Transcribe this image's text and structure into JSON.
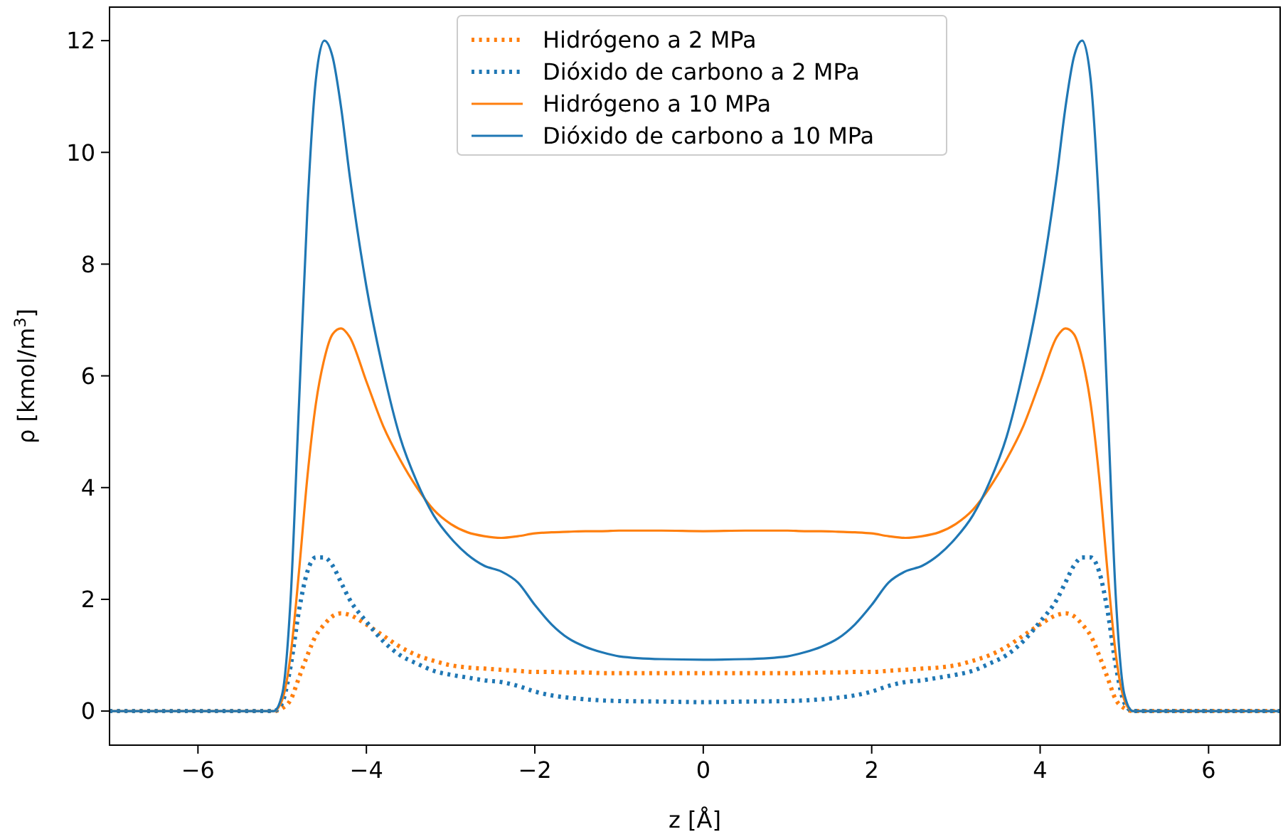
{
  "chart_data": {
    "type": "line",
    "xlabel": "z  [Å]",
    "ylabel": "ρ  [kmol/m$^{3}$]",
    "x": [
      -7.05,
      -5.1,
      -5.0,
      -4.9,
      -4.8,
      -4.7,
      -4.6,
      -4.5,
      -4.4,
      -4.3,
      -4.2,
      -4.0,
      -3.8,
      -3.6,
      -3.4,
      -3.2,
      -3.0,
      -2.8,
      -2.6,
      -2.4,
      -2.2,
      -2.0,
      -1.8,
      -1.6,
      -1.4,
      -1.2,
      -1.0,
      -0.5,
      0,
      0.5,
      1.0,
      1.2,
      1.4,
      1.6,
      1.8,
      2.0,
      2.2,
      2.4,
      2.6,
      2.8,
      3.0,
      3.2,
      3.4,
      3.6,
      3.8,
      4.0,
      4.2,
      4.3,
      4.4,
      4.5,
      4.6,
      4.7,
      4.8,
      4.9,
      5.0,
      5.1,
      6.85
    ],
    "series": [
      {
        "name": "Hidrógeno a 2 MPa",
        "color": "#ff7f0e",
        "line_style": "dotted",
        "values": [
          0,
          0,
          0.05,
          0.2,
          0.6,
          1.0,
          1.35,
          1.55,
          1.7,
          1.75,
          1.72,
          1.55,
          1.35,
          1.15,
          1.0,
          0.9,
          0.82,
          0.78,
          0.76,
          0.74,
          0.72,
          0.7,
          0.7,
          0.69,
          0.69,
          0.68,
          0.68,
          0.68,
          0.68,
          0.68,
          0.68,
          0.68,
          0.69,
          0.69,
          0.7,
          0.7,
          0.72,
          0.74,
          0.76,
          0.78,
          0.82,
          0.9,
          1.0,
          1.15,
          1.35,
          1.55,
          1.72,
          1.75,
          1.7,
          1.55,
          1.35,
          1.0,
          0.6,
          0.2,
          0.05,
          0,
          0
        ]
      },
      {
        "name": "Dióxido de carbono a 2 MPa",
        "color": "#1f77b4",
        "line_style": "dotted",
        "values": [
          0,
          0,
          0.15,
          0.8,
          1.8,
          2.5,
          2.75,
          2.75,
          2.6,
          2.3,
          2.0,
          1.6,
          1.25,
          1.0,
          0.85,
          0.72,
          0.65,
          0.6,
          0.55,
          0.52,
          0.45,
          0.35,
          0.28,
          0.24,
          0.21,
          0.19,
          0.18,
          0.17,
          0.16,
          0.17,
          0.18,
          0.19,
          0.21,
          0.24,
          0.28,
          0.35,
          0.45,
          0.52,
          0.55,
          0.6,
          0.65,
          0.72,
          0.85,
          1.0,
          1.25,
          1.6,
          2.0,
          2.3,
          2.6,
          2.75,
          2.75,
          2.5,
          1.8,
          0.8,
          0.15,
          0,
          0
        ]
      },
      {
        "name": "Hidrógeno a 10 MPa",
        "color": "#ff7f0e",
        "line_style": "solid",
        "values": [
          0,
          0,
          0.2,
          1,
          2.5,
          4.2,
          5.5,
          6.3,
          6.75,
          6.85,
          6.7,
          5.9,
          5.1,
          4.5,
          4.0,
          3.6,
          3.35,
          3.2,
          3.13,
          3.1,
          3.13,
          3.18,
          3.2,
          3.21,
          3.22,
          3.22,
          3.23,
          3.23,
          3.22,
          3.23,
          3.23,
          3.22,
          3.22,
          3.21,
          3.2,
          3.18,
          3.13,
          3.1,
          3.13,
          3.2,
          3.35,
          3.6,
          4.0,
          4.5,
          5.1,
          5.9,
          6.7,
          6.85,
          6.75,
          6.3,
          5.5,
          4.2,
          2.5,
          1,
          0.2,
          0,
          0
        ]
      },
      {
        "name": "Dióxido de carbono a 10 MPa",
        "color": "#1f77b4",
        "line_style": "solid",
        "values": [
          0,
          0,
          0.3,
          2,
          5.5,
          9,
          11.3,
          12.0,
          11.7,
          10.8,
          9.6,
          7.6,
          6.1,
          4.9,
          4.1,
          3.5,
          3.1,
          2.8,
          2.6,
          2.5,
          2.3,
          1.9,
          1.55,
          1.3,
          1.15,
          1.05,
          0.98,
          0.93,
          0.92,
          0.93,
          0.98,
          1.05,
          1.15,
          1.3,
          1.55,
          1.9,
          2.3,
          2.5,
          2.6,
          2.8,
          3.1,
          3.5,
          4.1,
          4.9,
          6.1,
          7.6,
          9.6,
          10.8,
          11.7,
          12.0,
          11.3,
          9,
          5.5,
          2,
          0.3,
          0,
          0
        ]
      }
    ],
    "xlim": [
      -7.05,
      6.85
    ],
    "ylim": [
      -0.61,
      12.6
    ],
    "xticks": [
      {
        "value": -6,
        "label": "−6"
      },
      {
        "value": -4,
        "label": "−4"
      },
      {
        "value": -2,
        "label": "−2"
      },
      0,
      2,
      4,
      6
    ],
    "yticks": [
      0,
      2,
      4,
      6,
      8,
      10,
      12
    ],
    "grid": false,
    "legend": "top",
    "marker": "none"
  }
}
